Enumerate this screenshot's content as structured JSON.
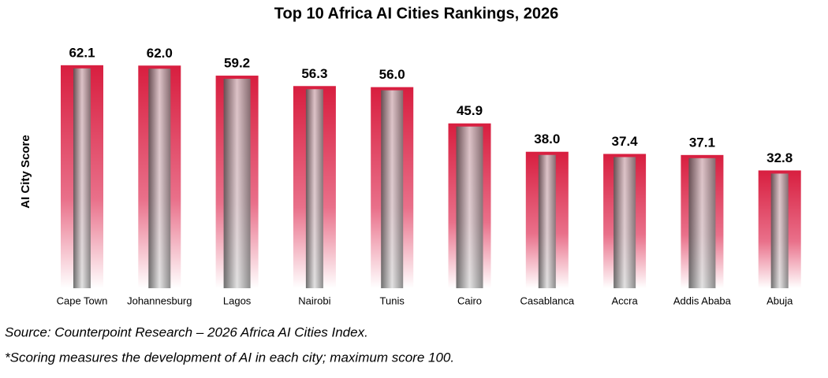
{
  "chart_data": {
    "type": "bar",
    "title": "Top 10 Africa AI Cities Rankings, 2026",
    "y_label": "AI City Score",
    "categories": [
      "Cape Town",
      "Johannesburg",
      "Lagos",
      "Nairobi",
      "Tunis",
      "Cairo",
      "Casablanca",
      "Accra",
      "Addis Ababa",
      "Abuja"
    ],
    "values": [
      62.1,
      62.0,
      59.2,
      56.3,
      56.0,
      45.9,
      38.0,
      37.4,
      37.1,
      32.8
    ],
    "value_labels": [
      "62.1",
      "62.0",
      "59.2",
      "56.3",
      "56.0",
      "45.9",
      "38.0",
      "37.4",
      "37.1",
      "32.8"
    ],
    "color": "#d81e3f",
    "source": "Source: Counterpoint Research – 2026 Africa AI Cities Index.",
    "note": "*Scoring measures the development of AI in each city; maximum score 100."
  }
}
